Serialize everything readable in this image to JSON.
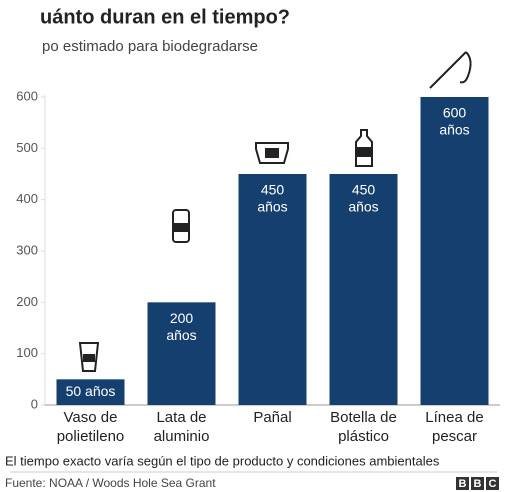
{
  "chart_data": {
    "type": "bar",
    "title": "uánto duran en el tiempo?",
    "subtitle": "po estimado para biodegradarse",
    "categories": [
      [
        "Vaso de",
        "polietileno"
      ],
      [
        "Lata de",
        "aluminio"
      ],
      [
        "Pañal"
      ],
      [
        "Botella de",
        "plástico"
      ],
      [
        "Línea de",
        "pescar"
      ]
    ],
    "values": [
      50,
      200,
      450,
      450,
      600
    ],
    "value_labels": [
      [
        "50 años"
      ],
      [
        "200",
        "años"
      ],
      [
        "450",
        "años"
      ],
      [
        "450",
        "años"
      ],
      [
        "600",
        "años"
      ]
    ],
    "color": "#143f6e",
    "ylim": [
      0,
      600
    ],
    "yticks": [
      0,
      100,
      200,
      300,
      400,
      500,
      600
    ],
    "note": "El tiempo exacto varía según el tipo de producto y condiciones ambientales",
    "source": "Fuente: NOAA / Woods Hole Sea Grant",
    "logo": [
      "B",
      "B",
      "C"
    ]
  }
}
